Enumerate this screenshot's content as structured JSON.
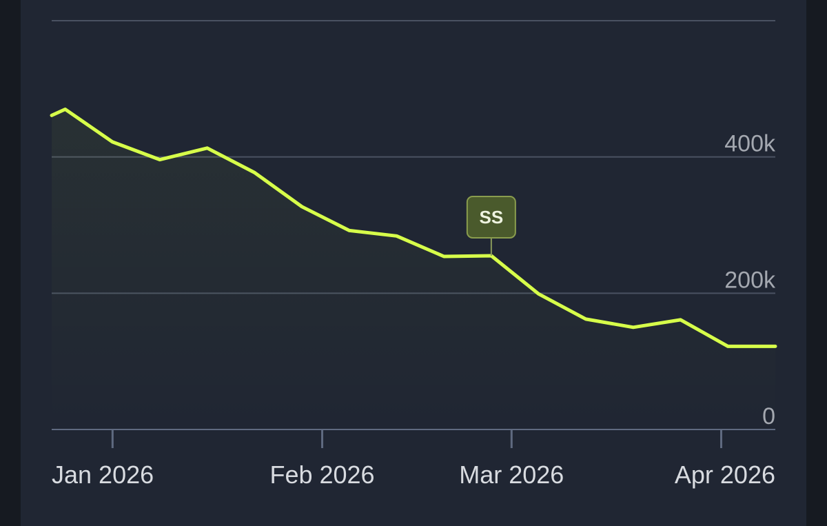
{
  "chart_data": {
    "type": "area",
    "title": "",
    "xlabel": "",
    "ylabel": "",
    "x": [
      "2025-12-23",
      "2025-12-25",
      "2026-01-01",
      "2026-01-08",
      "2026-01-15",
      "2026-01-22",
      "2026-01-29",
      "2026-02-05",
      "2026-02-12",
      "2026-02-19",
      "2026-02-26",
      "2026-03-05",
      "2026-03-12",
      "2026-03-19",
      "2026-03-26",
      "2026-04-02",
      "2026-04-09"
    ],
    "series": [
      {
        "values": [
          461000,
          470000,
          422000,
          396000,
          413000,
          377000,
          327000,
          292000,
          284000,
          254000,
          255000,
          199000,
          162000,
          150000,
          161000,
          122000,
          122000
        ],
        "color": "#d7ff4a"
      }
    ],
    "ylim": [
      0,
      600000
    ],
    "yticks": [
      {
        "value": 0,
        "label": "0"
      },
      {
        "value": 200000,
        "label": "200k"
      },
      {
        "value": 400000,
        "label": "400k"
      }
    ],
    "xticks": [
      {
        "date": "2026-01-01",
        "label": "Jan 2026"
      },
      {
        "date": "2026-02-01",
        "label": "Feb 2026"
      },
      {
        "date": "2026-03-01",
        "label": "Mar 2026"
      },
      {
        "date": "2026-04-01",
        "label": "Apr 2026"
      }
    ],
    "annotations": [
      {
        "date": "2026-02-26",
        "label": "SS"
      }
    ],
    "grid": true,
    "legend": "none"
  }
}
